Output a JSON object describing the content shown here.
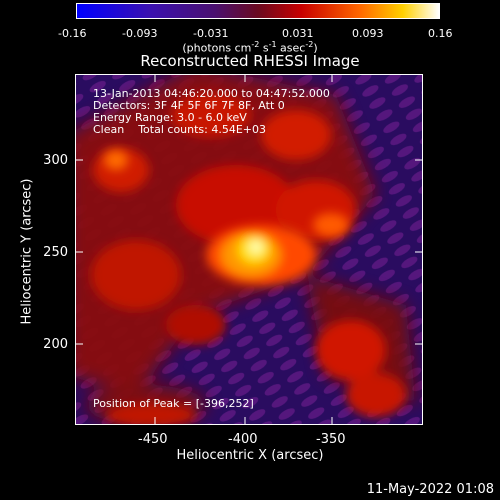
{
  "colorbar": {
    "ticks": [
      "-0.16",
      "-0.093",
      "-0.031",
      "0.031",
      "0.093",
      "0.16"
    ],
    "units_prefix": "(photons cm",
    "units_sup1": "-2",
    "units_mid1": " s",
    "units_sup2": "-1",
    "units_mid2": " asec",
    "units_sup3": "-2",
    "units_suffix": ")"
  },
  "title": "Reconstructed RHESSI Image",
  "info": {
    "line1": "13-Jan-2013 04:46:20.000 to 04:47:52.000",
    "line2": "Detectors: 3F 4F 5F 6F 7F 8F, Att 0",
    "line3": "Energy Range: 3.0 - 6.0 keV",
    "line4": "Clean    Total counts: 4.54E+03",
    "peak": "Position of Peak = [-396,252]"
  },
  "axes": {
    "xlabel": "Heliocentric X (arcsec)",
    "ylabel": "Heliocentric Y (arcsec)",
    "xticks": [
      "-450",
      "-400",
      "-350"
    ],
    "yticks": [
      "300",
      "250",
      "200"
    ]
  },
  "footer": {
    "date": "11-May-2022 01:08"
  }
}
